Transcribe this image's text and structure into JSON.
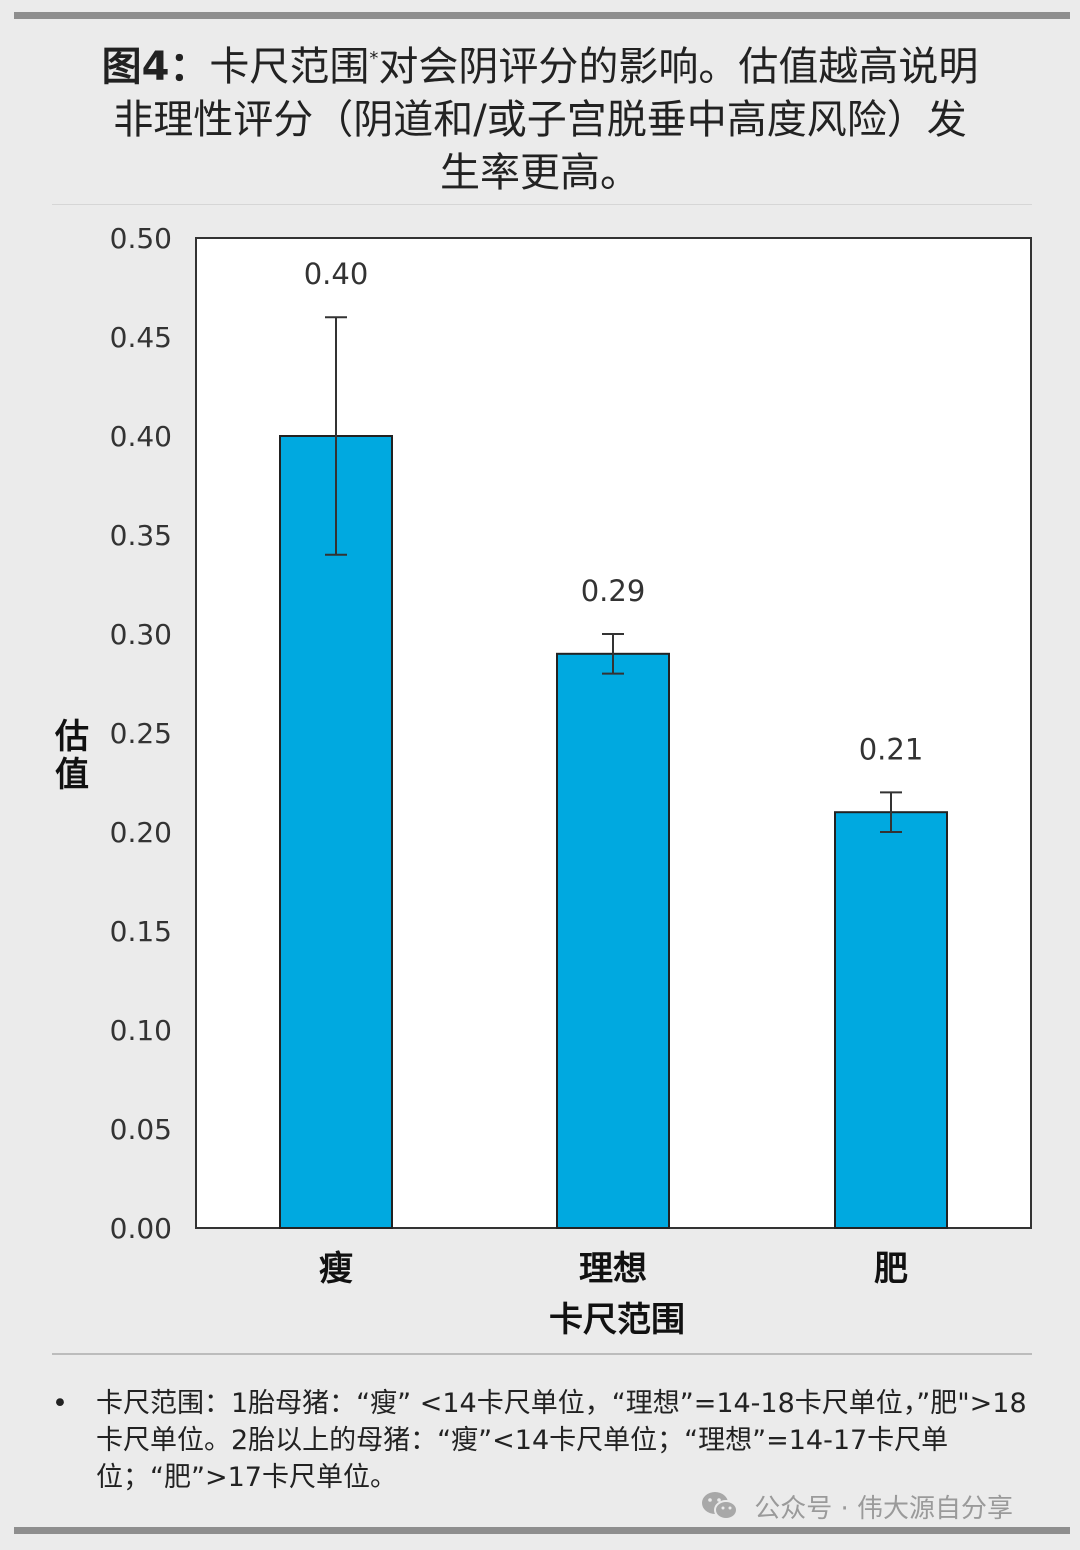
{
  "title": {
    "prefix": "图4：",
    "line1": "卡尺范围",
    "mark": "*",
    "line1b": "对会阴评分的影响。估值越高说明",
    "line2": "非理性评分（阴道和/或子宫脱垂中高度风险）发",
    "line3": "生率更高。"
  },
  "chart_data": {
    "type": "bar",
    "categories": [
      "瘦",
      "理想",
      "肥"
    ],
    "values": [
      0.4,
      0.29,
      0.21
    ],
    "error_low": [
      0.34,
      0.28,
      0.2
    ],
    "error_high": [
      0.46,
      0.3,
      0.22
    ],
    "data_labels": [
      "0.40",
      "0.29",
      "0.21"
    ],
    "ylabel": "估值",
    "xlabel": "卡尺范围",
    "ylim": [
      0,
      0.5
    ],
    "yticks": [
      "0.00",
      "0.05",
      "0.10",
      "0.15",
      "0.20",
      "0.25",
      "0.30",
      "0.35",
      "0.40",
      "0.45",
      "0.50"
    ],
    "grid": false,
    "bar_color": "#00a9e0"
  },
  "footnote": {
    "bullet": "•",
    "text": "卡尺范围：1胎母猪：“瘦” <14卡尺单位，“理想”=14-18卡尺单位，”肥\">18卡尺单位。2胎以上的母猪：“瘦”<14卡尺单位；“理想”=14-17卡尺单位；“肥”>17卡尺单位。"
  },
  "watermark": {
    "icon": "wechat-icon",
    "text": "公众号 · 伟大源自分享"
  }
}
